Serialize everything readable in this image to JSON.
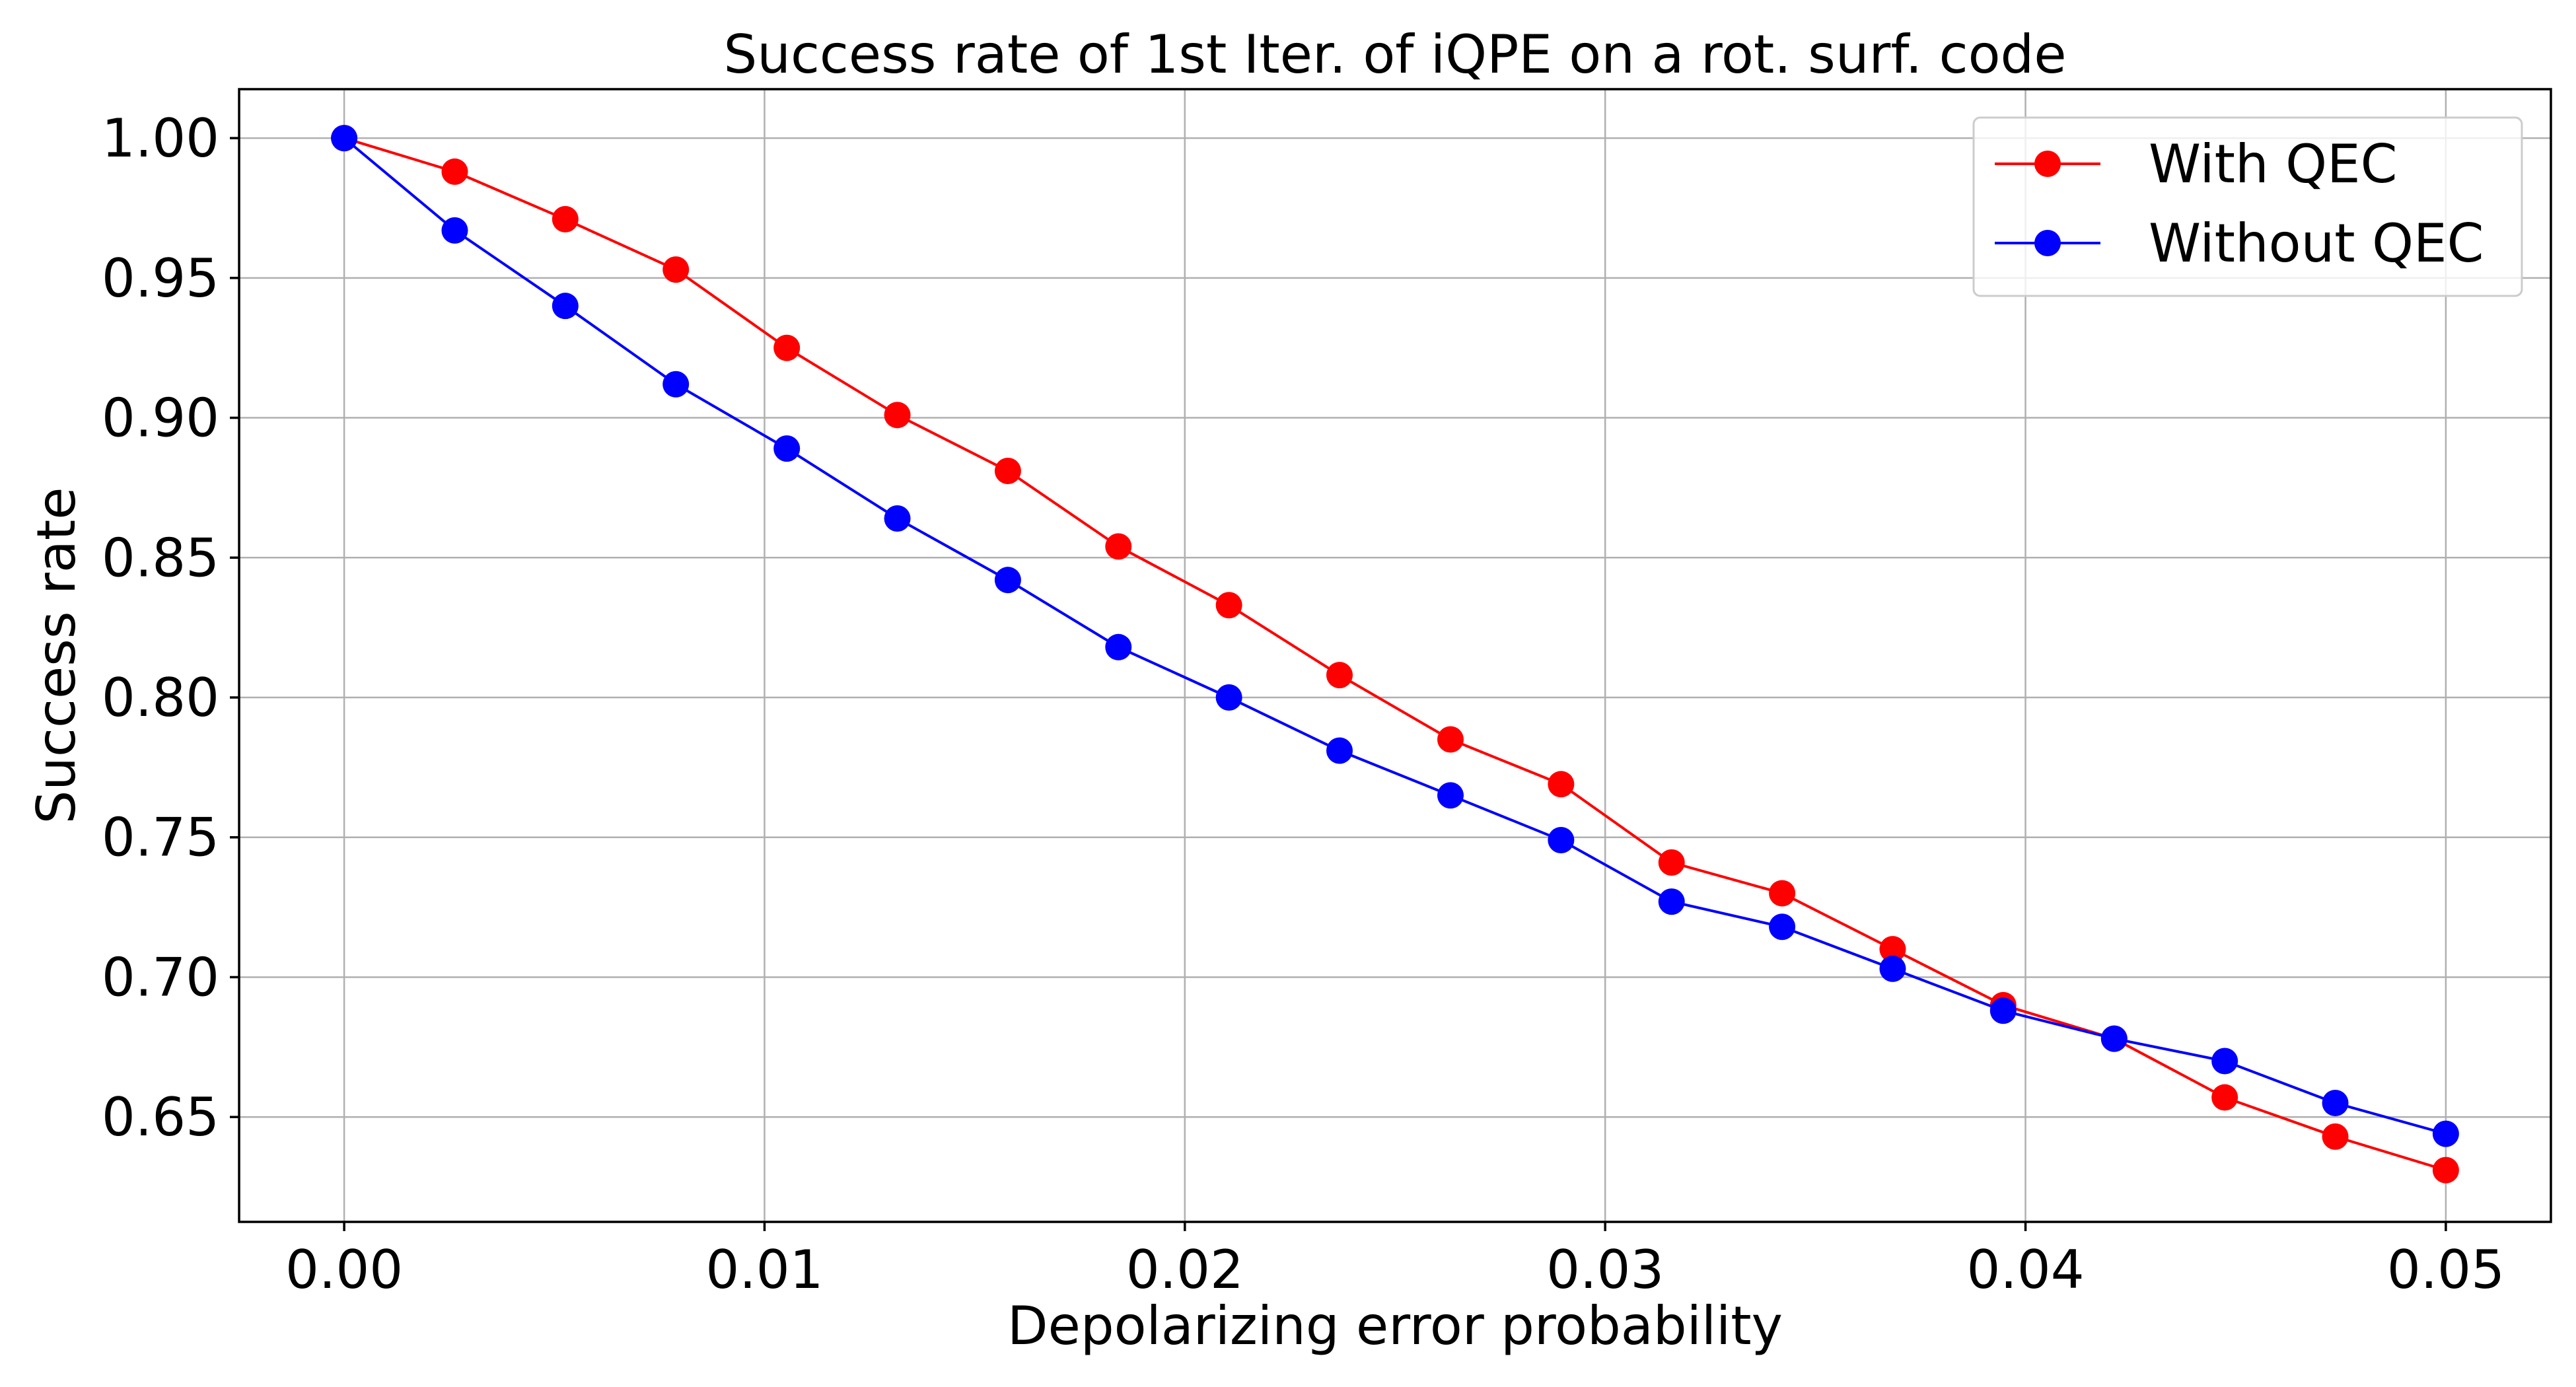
{
  "chart_data": {
    "type": "line",
    "title": "Success rate of 1st Iter. of iQPE on a rot. surf. code",
    "xlabel": "Depolarizing error probability",
    "ylabel": "Success rate",
    "xlim": [
      -0.0025,
      0.0525
    ],
    "ylim": [
      0.6125,
      1.0175
    ],
    "xticks": [
      0.0,
      0.01,
      0.02,
      0.03,
      0.04,
      0.05
    ],
    "xtick_labels": [
      "0.00",
      "0.01",
      "0.02",
      "0.03",
      "0.04",
      "0.05"
    ],
    "yticks": [
      0.65,
      0.7,
      0.75,
      0.8,
      0.85,
      0.9,
      0.95,
      1.0
    ],
    "ytick_labels": [
      "0.65",
      "0.70",
      "0.75",
      "0.80",
      "0.85",
      "0.90",
      "0.95",
      "1.00"
    ],
    "grid": true,
    "legend_position": "top-right",
    "x": [
      0.0,
      0.00263,
      0.00526,
      0.00789,
      0.01053,
      0.01316,
      0.01579,
      0.01842,
      0.02105,
      0.02368,
      0.02632,
      0.02895,
      0.03158,
      0.03421,
      0.03684,
      0.03947,
      0.04211,
      0.04474,
      0.04737,
      0.05
    ],
    "series": [
      {
        "name": "With QEC",
        "color": "#ff0000",
        "values": [
          1.0,
          0.988,
          0.971,
          0.953,
          0.925,
          0.901,
          0.881,
          0.854,
          0.833,
          0.808,
          0.785,
          0.769,
          0.741,
          0.73,
          0.71,
          0.69,
          0.678,
          0.657,
          0.643,
          0.631
        ]
      },
      {
        "name": "Without QEC",
        "color": "#0000ff",
        "values": [
          1.0,
          0.967,
          0.94,
          0.912,
          0.889,
          0.864,
          0.842,
          0.818,
          0.8,
          0.781,
          0.765,
          0.749,
          0.727,
          0.718,
          0.703,
          0.688,
          0.678,
          0.67,
          0.655,
          0.644
        ]
      }
    ]
  }
}
